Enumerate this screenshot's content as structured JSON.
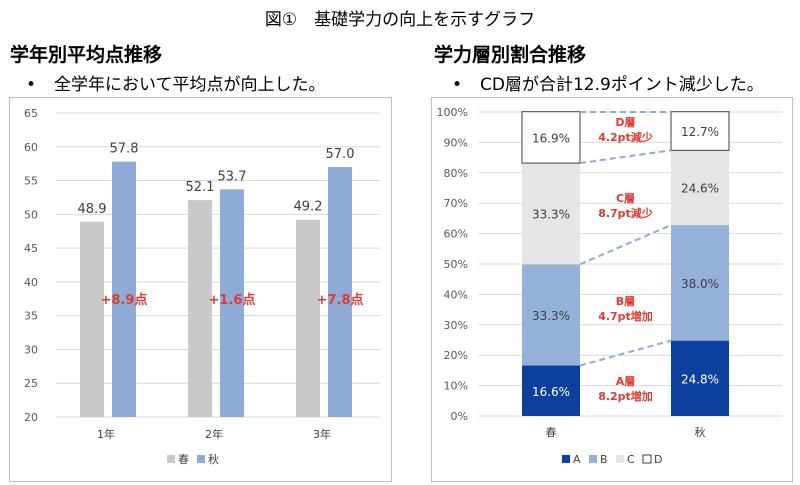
{
  "figure_title": "図①　基礎学力の向上を示すグラフ",
  "left": {
    "heading": "学年別平均点推移",
    "bullet_mark": "•",
    "bullet_text": "全学年において平均点が向上した。"
  },
  "right": {
    "heading": "学力層別割合推移",
    "bullet_mark": "•",
    "bullet_text": "CD層が合計12.9ポイント減少した。"
  },
  "chart_data": [
    {
      "type": "bar",
      "title": "",
      "categories": [
        "1年",
        "2年",
        "3年"
      ],
      "series": [
        {
          "name": "春",
          "color": "#c9c9c9",
          "values": [
            48.9,
            52.1,
            49.2
          ]
        },
        {
          "name": "秋",
          "color": "#8eaad6",
          "values": [
            57.8,
            53.7,
            57.0
          ]
        }
      ],
      "data_labels": [
        "48.9",
        "57.8",
        "52.1",
        "53.7",
        "49.2",
        "57.0"
      ],
      "annotations": [
        "+8.9点",
        "+1.6点",
        "+7.8点"
      ],
      "annotation_color": "#e03c31",
      "ylim": [
        20,
        65
      ],
      "yticks": [
        20,
        25,
        30,
        35,
        40,
        45,
        50,
        55,
        60,
        65
      ],
      "ytick_labels": [
        "20",
        "25",
        "30",
        "35",
        "40",
        "45",
        "50",
        "55",
        "60",
        "65"
      ],
      "grid": true,
      "legend_position": "bottom"
    },
    {
      "type": "stacked-bar",
      "title": "",
      "categories": [
        "春",
        "秋"
      ],
      "series": [
        {
          "name": "A",
          "color": "#0d3f9e",
          "values": [
            16.6,
            24.8
          ],
          "labels": [
            "16.6%",
            "24.8%"
          ]
        },
        {
          "name": "B",
          "color": "#96b1d9",
          "values": [
            33.3,
            38.0
          ],
          "labels": [
            "33.3%",
            "38.0%"
          ]
        },
        {
          "name": "C",
          "color": "#e5e5e5",
          "values": [
            33.3,
            24.6
          ],
          "labels": [
            "33.3%",
            "24.6%"
          ]
        },
        {
          "name": "D",
          "color": "#ffffff",
          "values": [
            16.9,
            12.7
          ],
          "labels": [
            "16.9%",
            "12.7%"
          ]
        }
      ],
      "annotations": [
        {
          "layer": "D",
          "line1": "D層",
          "line2": "4.2pt減少"
        },
        {
          "layer": "C",
          "line1": "C層",
          "line2": "8.7pt減少"
        },
        {
          "layer": "B",
          "line1": "B層",
          "line2": "4.7pt増加"
        },
        {
          "layer": "A",
          "line1": "A層",
          "line2": "8.2pt増加"
        }
      ],
      "annotation_color": "#e03c31",
      "connector_color": "#8eaad6",
      "ylim": [
        0,
        100
      ],
      "yticks": [
        0,
        10,
        20,
        30,
        40,
        50,
        60,
        70,
        80,
        90,
        100
      ],
      "ytick_labels": [
        "0%",
        "10%",
        "20%",
        "30%",
        "40%",
        "50%",
        "60%",
        "70%",
        "80%",
        "90%",
        "100%"
      ],
      "grid": true,
      "legend_position": "bottom"
    }
  ]
}
